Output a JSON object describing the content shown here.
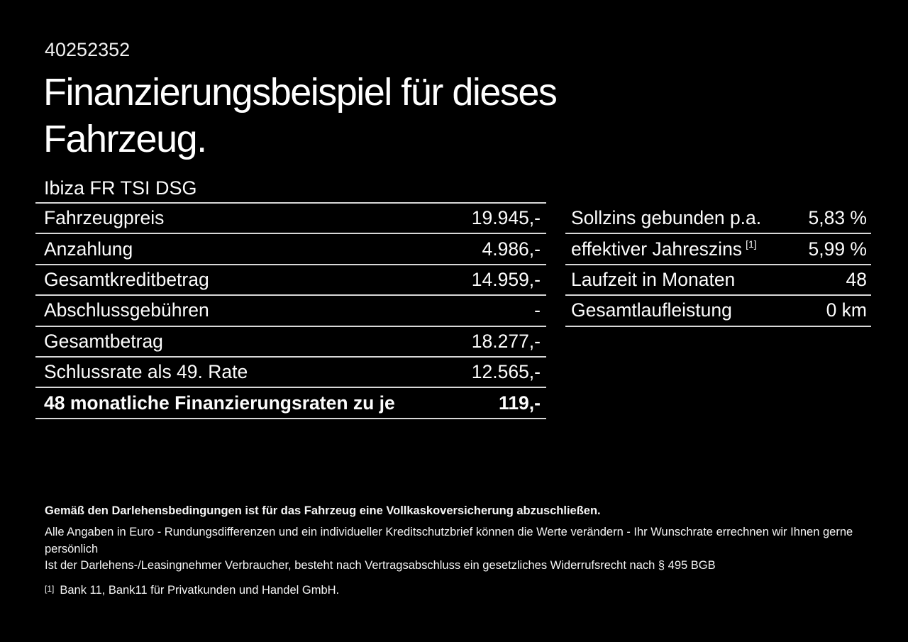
{
  "page": {
    "id_number": "40252352",
    "heading_lines": [
      "Finanzierungsbeispiel für dieses",
      "Fahrzeug."
    ],
    "vehicle_model": "Ibiza FR TSI DSG"
  },
  "left_table": {
    "rows": [
      {
        "label": "Fahrzeugpreis",
        "value": "19.945,-"
      },
      {
        "label": "Anzahlung",
        "value": "4.986,-"
      },
      {
        "label": "Gesamtkreditbetrag",
        "value": "14.959,-"
      },
      {
        "label": "Abschlussgebühren",
        "value": "-"
      },
      {
        "label": "Gesamtbetrag",
        "value": "18.277,-"
      },
      {
        "label": "Schlussrate als 49. Rate",
        "value": "12.565,-"
      },
      {
        "label": "48 monatliche Finanzierungsraten zu je",
        "value": "119,-"
      }
    ]
  },
  "right_table": {
    "rows": [
      {
        "label": "Sollzins gebunden p.a.",
        "value": "5,83 %"
      },
      {
        "label": "effektiver Jahreszins",
        "sup": "[1]",
        "value": "5,99 %"
      },
      {
        "label": "Laufzeit in Monaten",
        "value": "48"
      },
      {
        "label": "Gesamtlaufleistung",
        "value": "0 km"
      }
    ]
  },
  "footer": {
    "bold_note": "Gemäß den Darlehensbedingungen ist für das Fahrzeug eine Vollkaskoversicherung abzuschließen.",
    "notes": [
      "Alle Angaben in Euro - Rundungsdifferenzen und ein individueller Kreditschutzbrief können die Werte verändern - Ihr Wunschrate errechnen wir Ihnen gerne persönlich",
      "Ist der Darlehens-/Leasingnehmer Verbraucher, besteht nach Vertragsabschluss ein gesetzliches Widerrufsrecht nach § 495 BGB"
    ],
    "footnote_marker": "[1]",
    "footnote_text": "Bank 11, Bank11 für Privatkunden und Handel GmbH."
  },
  "colors": {
    "background": "#000000",
    "text": "#fcfcfc",
    "divider": "#d8d8d8"
  }
}
